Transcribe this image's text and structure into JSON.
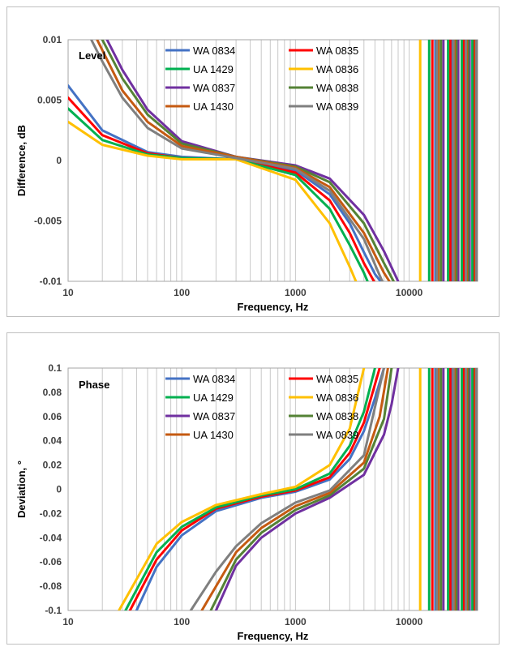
{
  "chart_data": [
    {
      "type": "line",
      "panel_label": "Level",
      "xlabel": "Frequency, Hz",
      "ylabel": "Difference, dB",
      "x_scale": "log",
      "xlim": [
        10,
        40000
      ],
      "ylim": [
        -0.01,
        0.01
      ],
      "x_ticks": [
        {
          "value": 10,
          "label": "10"
        },
        {
          "value": 100,
          "label": "100"
        },
        {
          "value": 1000,
          "label": "1000"
        },
        {
          "value": 10000,
          "label": "10000"
        }
      ],
      "y_ticks": [
        {
          "value": 0.01,
          "label": "0.01"
        },
        {
          "value": 0.005,
          "label": "0.005"
        },
        {
          "value": 0,
          "label": "0"
        },
        {
          "value": -0.005,
          "label": "-0.005"
        },
        {
          "value": -0.01,
          "label": "-0.01"
        }
      ],
      "grid": {
        "vertical_minor": true,
        "horizontal": false
      },
      "legend": {
        "placement": "inside-top",
        "columns": 2
      },
      "series": [
        {
          "name": "WA 0834",
          "color": "#4472c4",
          "x": [
            10,
            20,
            50,
            100,
            300,
            1000,
            2000,
            3000,
            4000,
            5000,
            5600
          ],
          "y": [
            0.0062,
            0.0025,
            0.0007,
            0.0003,
            0.0001,
            -0.0008,
            -0.0028,
            -0.0052,
            -0.0076,
            -0.0094,
            -0.01
          ],
          "vlines": [
            17000,
            24000,
            31000,
            38000
          ]
        },
        {
          "name": "WA 0835",
          "color": "#ff0000",
          "x": [
            10,
            20,
            50,
            100,
            300,
            1000,
            2000,
            3000,
            4000,
            4900
          ],
          "y": [
            0.0052,
            0.0021,
            0.0006,
            0.0002,
            0.0001,
            -0.001,
            -0.0033,
            -0.006,
            -0.0085,
            -0.01
          ],
          "vlines": [
            16000,
            23000,
            30000,
            37000
          ]
        },
        {
          "name": "UA 1429",
          "color": "#00b050",
          "x": [
            10,
            20,
            50,
            100,
            300,
            1000,
            2000,
            3000,
            4000,
            4300
          ],
          "y": [
            0.0043,
            0.0017,
            0.0005,
            0.0002,
            0.0001,
            -0.0012,
            -0.004,
            -0.007,
            -0.0093,
            -0.01
          ],
          "vlines": [
            15000,
            22000,
            29000,
            36000
          ]
        },
        {
          "name": "WA 0836",
          "color": "#ffc000",
          "x": [
            10,
            20,
            50,
            100,
            300,
            1000,
            2000,
            3000,
            3400
          ],
          "y": [
            0.0032,
            0.0013,
            0.0004,
            0.0001,
            0.0001,
            -0.0016,
            -0.0052,
            -0.0088,
            -0.01
          ],
          "vlines": [
            12500,
            19000,
            26000,
            33000
          ]
        },
        {
          "name": "WA 0837",
          "color": "#7030a0",
          "x": [
            22,
            30,
            50,
            100,
            300,
            1000,
            2000,
            4000,
            6000,
            8000
          ],
          "y": [
            0.01,
            0.0075,
            0.0042,
            0.0016,
            0.0003,
            -0.0004,
            -0.0015,
            -0.0045,
            -0.0075,
            -0.01
          ],
          "vlines": [
            20000,
            27000,
            34000,
            40000
          ]
        },
        {
          "name": "WA 0838",
          "color": "#548235",
          "x": [
            20,
            30,
            50,
            100,
            300,
            1000,
            2000,
            4000,
            6000,
            7300
          ],
          "y": [
            0.01,
            0.0068,
            0.0038,
            0.0014,
            0.0003,
            -0.0005,
            -0.0018,
            -0.0052,
            -0.0085,
            -0.01
          ],
          "vlines": [
            19000,
            26000,
            33000,
            39000
          ]
        },
        {
          "name": "UA 1430",
          "color": "#c55a11",
          "x": [
            18,
            30,
            50,
            100,
            300,
            1000,
            2000,
            4000,
            6000,
            6700
          ],
          "y": [
            0.01,
            0.0058,
            0.0032,
            0.0012,
            0.0003,
            -0.0006,
            -0.0022,
            -0.006,
            -0.0093,
            -0.01
          ],
          "vlines": [
            18000,
            25000,
            32000,
            38500
          ]
        },
        {
          "name": "WA 0839",
          "color": "#7f7f7f",
          "x": [
            16,
            20,
            30,
            50,
            100,
            300,
            1000,
            2000,
            4000,
            5800
          ],
          "y": [
            0.01,
            0.0082,
            0.0052,
            0.0027,
            0.001,
            0.0002,
            -0.0007,
            -0.0025,
            -0.0065,
            -0.01
          ],
          "vlines": [
            17500,
            24500,
            31500,
            39000
          ]
        }
      ]
    },
    {
      "type": "line",
      "panel_label": "Phase",
      "xlabel": "Frequency, Hz",
      "ylabel": "Deviation, °",
      "x_scale": "log",
      "xlim": [
        10,
        40000
      ],
      "ylim": [
        -0.1,
        0.1
      ],
      "x_ticks": [
        {
          "value": 10,
          "label": "10"
        },
        {
          "value": 100,
          "label": "100"
        },
        {
          "value": 1000,
          "label": "1000"
        },
        {
          "value": 10000,
          "label": "10000"
        }
      ],
      "y_ticks": [
        {
          "value": 0.1,
          "label": "0.1"
        },
        {
          "value": 0.08,
          "label": "0.08"
        },
        {
          "value": 0.06,
          "label": "0.06"
        },
        {
          "value": 0.04,
          "label": "0.04"
        },
        {
          "value": 0.02,
          "label": "0.02"
        },
        {
          "value": 0,
          "label": "0"
        },
        {
          "value": -0.02,
          "label": "-0.02"
        },
        {
          "value": -0.04,
          "label": "-0.04"
        },
        {
          "value": -0.06,
          "label": "-0.06"
        },
        {
          "value": -0.08,
          "label": "-0.08"
        },
        {
          "value": -0.1,
          "label": "-0.1"
        }
      ],
      "grid": {
        "vertical_minor": true,
        "horizontal": false
      },
      "legend": {
        "placement": "inside-top",
        "columns": 2
      },
      "series": [
        {
          "name": "WA 0834",
          "color": "#4472c4",
          "x": [
            40,
            60,
            100,
            200,
            500,
            1000,
            2000,
            3000,
            4000,
            5000,
            6000
          ],
          "y": [
            -0.1,
            -0.064,
            -0.038,
            -0.018,
            -0.007,
            -0.002,
            0.008,
            0.025,
            0.048,
            0.075,
            0.1
          ],
          "vlines": [
            17000,
            24000,
            31000,
            38000
          ]
        },
        {
          "name": "WA 0835",
          "color": "#ff0000",
          "x": [
            35,
            60,
            100,
            200,
            500,
            1000,
            2000,
            3000,
            4000,
            5500
          ],
          "y": [
            -0.1,
            -0.058,
            -0.034,
            -0.016,
            -0.006,
            -0.001,
            0.01,
            0.03,
            0.055,
            0.1
          ],
          "vlines": [
            16000,
            23000,
            30000,
            37000
          ]
        },
        {
          "name": "UA 1429",
          "color": "#00b050",
          "x": [
            32,
            60,
            100,
            200,
            500,
            1000,
            2000,
            3000,
            4000,
            5000
          ],
          "y": [
            -0.1,
            -0.052,
            -0.031,
            -0.015,
            -0.005,
            0.0,
            0.013,
            0.036,
            0.064,
            0.1
          ],
          "vlines": [
            15000,
            22000,
            29000,
            36000
          ]
        },
        {
          "name": "WA 0836",
          "color": "#ffc000",
          "x": [
            28,
            60,
            100,
            200,
            500,
            1000,
            2000,
            3000,
            4000
          ],
          "y": [
            -0.1,
            -0.045,
            -0.027,
            -0.013,
            -0.004,
            0.002,
            0.02,
            0.05,
            0.1
          ],
          "vlines": [
            12500,
            19000,
            26000,
            33000
          ]
        },
        {
          "name": "WA 0837",
          "color": "#7030a0",
          "x": [
            200,
            300,
            500,
            1000,
            2000,
            4000,
            6000,
            7000,
            8000
          ],
          "y": [
            -0.1,
            -0.063,
            -0.04,
            -0.02,
            -0.007,
            0.012,
            0.045,
            0.07,
            0.1
          ],
          "vlines": [
            20000,
            27000,
            34000,
            40000
          ]
        },
        {
          "name": "WA 0838",
          "color": "#548235",
          "x": [
            180,
            300,
            500,
            1000,
            2000,
            4000,
            6000,
            7000
          ],
          "y": [
            -0.1,
            -0.058,
            -0.036,
            -0.017,
            -0.005,
            0.017,
            0.058,
            0.1
          ],
          "vlines": [
            19000,
            26000,
            33000,
            39000
          ]
        },
        {
          "name": "UA 1430",
          "color": "#c55a11",
          "x": [
            150,
            300,
            500,
            1000,
            2000,
            4000,
            5500,
            6500
          ],
          "y": [
            -0.1,
            -0.052,
            -0.032,
            -0.014,
            -0.003,
            0.022,
            0.06,
            0.1
          ],
          "vlines": [
            18000,
            25000,
            32000,
            38500
          ]
        },
        {
          "name": "WA 0839",
          "color": "#7f7f7f",
          "x": [
            120,
            200,
            300,
            500,
            1000,
            2000,
            4000,
            6000
          ],
          "y": [
            -0.1,
            -0.068,
            -0.047,
            -0.028,
            -0.011,
            -0.001,
            0.028,
            0.1
          ],
          "vlines": [
            17500,
            24500,
            31500,
            39000
          ]
        }
      ]
    }
  ]
}
